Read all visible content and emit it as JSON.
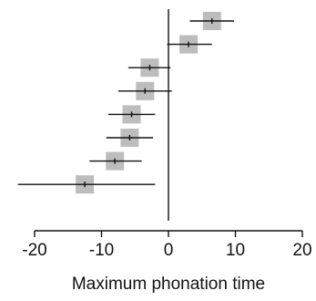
{
  "chart_data": {
    "type": "forest",
    "title": "",
    "xlabel": "Maximum phonation time",
    "ylabel": "",
    "xlim": [
      -22.5,
      20
    ],
    "xticks": [
      -20,
      -10,
      0,
      10,
      20
    ],
    "xtick_labels": [
      "-20",
      "-10",
      "0",
      "10",
      "20"
    ],
    "reference_line_x": 0,
    "grid": false,
    "legend": "none",
    "studies": [
      {
        "estimate": 6.5,
        "ci_low": 3.2,
        "ci_high": 9.8
      },
      {
        "estimate": 3.0,
        "ci_low": -0.2,
        "ci_high": 6.5
      },
      {
        "estimate": -2.8,
        "ci_low": -6.0,
        "ci_high": 0.3
      },
      {
        "estimate": -3.5,
        "ci_low": -7.5,
        "ci_high": 0.5
      },
      {
        "estimate": -5.5,
        "ci_low": -9.0,
        "ci_high": -2.0
      },
      {
        "estimate": -5.8,
        "ci_low": -9.3,
        "ci_high": -2.3
      },
      {
        "estimate": -8.0,
        "ci_low": -11.8,
        "ci_high": -4.0
      },
      {
        "estimate": -12.5,
        "ci_low": -22.5,
        "ci_high": -2.0
      }
    ],
    "colors": {
      "box": "#bdbdbd",
      "line": "#111111"
    }
  }
}
